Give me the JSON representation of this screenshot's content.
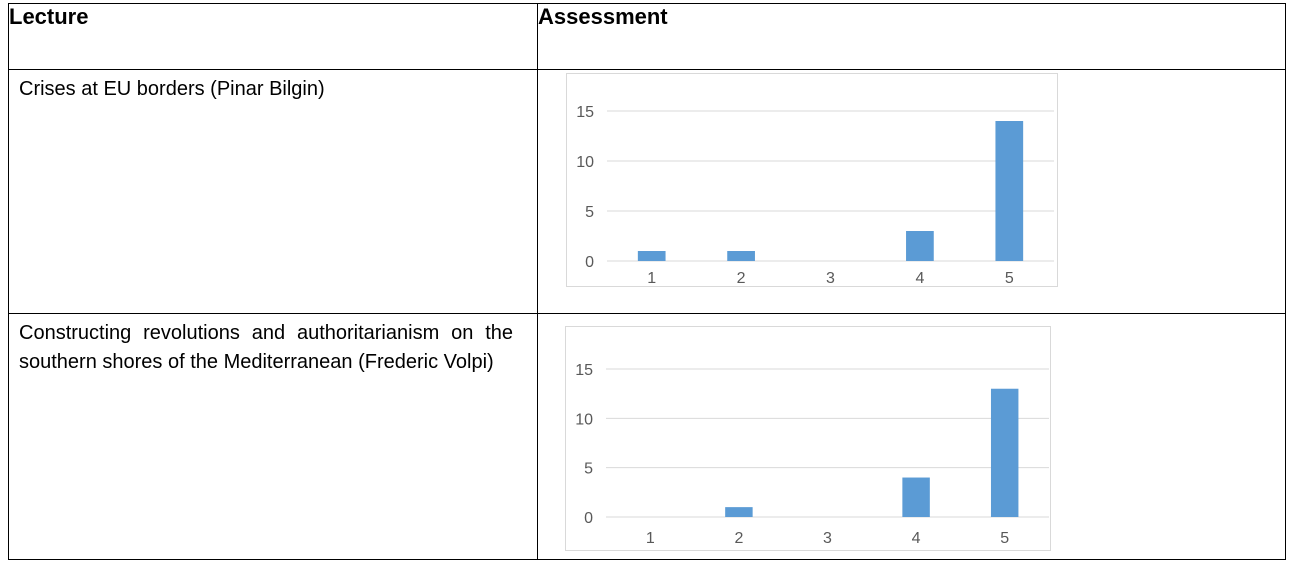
{
  "table": {
    "headers": [
      "Lecture",
      "Assessment"
    ],
    "rows": [
      {
        "lecture": "Crises at EU borders (Pinar Bilgin)"
      },
      {
        "lecture": "Constructing revolutions and authoritarianism on the southern shores of the Mediterranean (Frederic Volpi)"
      }
    ]
  },
  "chart_data": [
    {
      "type": "bar",
      "categories": [
        "1",
        "2",
        "3",
        "4",
        "5"
      ],
      "values": [
        1,
        1,
        0,
        3,
        14
      ],
      "title": "",
      "xlabel": "",
      "ylabel": "",
      "ylim": [
        0,
        15
      ],
      "yticks": [
        0,
        5,
        10,
        15
      ],
      "grid": true,
      "bar_color": "#5b9bd5"
    },
    {
      "type": "bar",
      "categories": [
        "1",
        "2",
        "3",
        "4",
        "5"
      ],
      "values": [
        0,
        1,
        0,
        4,
        13
      ],
      "title": "",
      "xlabel": "",
      "ylabel": "",
      "ylim": [
        0,
        15
      ],
      "yticks": [
        0,
        5,
        10,
        15
      ],
      "grid": true,
      "bar_color": "#5b9bd5"
    }
  ]
}
